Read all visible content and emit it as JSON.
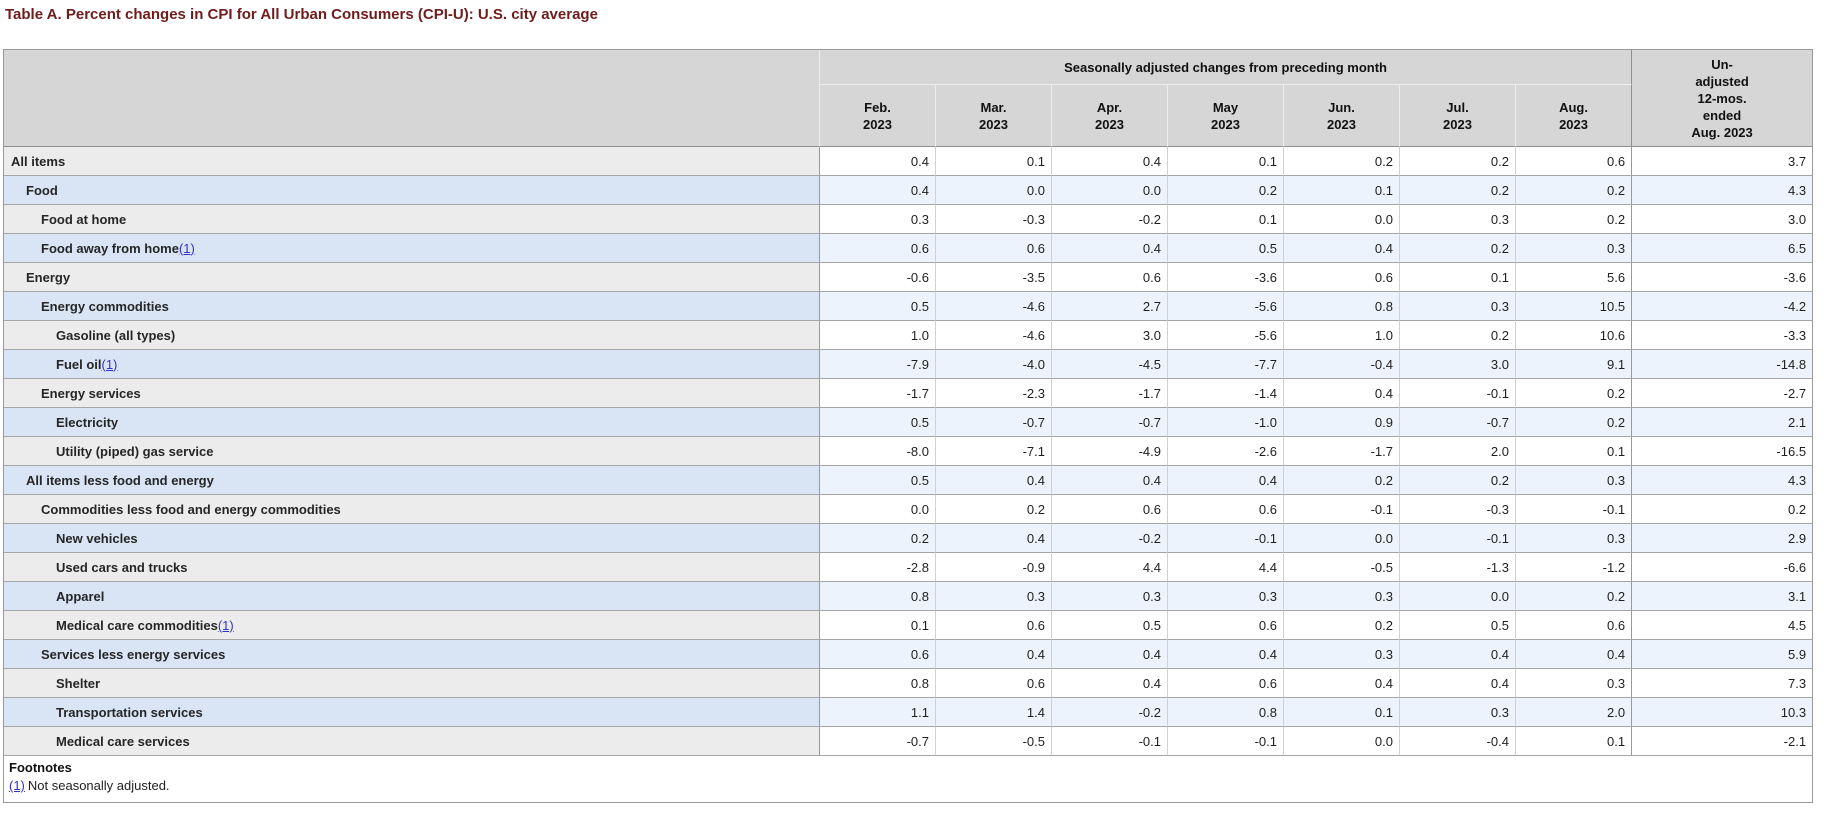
{
  "page_title": "Table A. Percent changes in CPI for All Urban Consumers (CPI-U): U.S. city average",
  "table": {
    "group_header": "Seasonally adjusted changes from preceding month",
    "columns": [
      "Feb.\n2023",
      "Mar.\n2023",
      "Apr.\n2023",
      "May\n2023",
      "Jun.\n2023",
      "Jul.\n2023",
      "Aug.\n2023"
    ],
    "last_column_header": "Un-\nadjusted\n12-mos.\nended\nAug. 2023",
    "rows": [
      {
        "label": "All items",
        "indent": 0,
        "footnote": null,
        "values": [
          "0.4",
          "0.1",
          "0.4",
          "0.1",
          "0.2",
          "0.2",
          "0.6"
        ],
        "yoy": "3.7"
      },
      {
        "label": "Food",
        "indent": 1,
        "footnote": null,
        "values": [
          "0.4",
          "0.0",
          "0.0",
          "0.2",
          "0.1",
          "0.2",
          "0.2"
        ],
        "yoy": "4.3"
      },
      {
        "label": "Food at home",
        "indent": 2,
        "footnote": null,
        "values": [
          "0.3",
          "-0.3",
          "-0.2",
          "0.1",
          "0.0",
          "0.3",
          "0.2"
        ],
        "yoy": "3.0"
      },
      {
        "label": "Food away from home",
        "indent": 2,
        "footnote": "(1)",
        "values": [
          "0.6",
          "0.6",
          "0.4",
          "0.5",
          "0.4",
          "0.2",
          "0.3"
        ],
        "yoy": "6.5"
      },
      {
        "label": "Energy",
        "indent": 1,
        "footnote": null,
        "values": [
          "-0.6",
          "-3.5",
          "0.6",
          "-3.6",
          "0.6",
          "0.1",
          "5.6"
        ],
        "yoy": "-3.6"
      },
      {
        "label": "Energy commodities",
        "indent": 2,
        "footnote": null,
        "values": [
          "0.5",
          "-4.6",
          "2.7",
          "-5.6",
          "0.8",
          "0.3",
          "10.5"
        ],
        "yoy": "-4.2"
      },
      {
        "label": "Gasoline (all types)",
        "indent": 3,
        "footnote": null,
        "values": [
          "1.0",
          "-4.6",
          "3.0",
          "-5.6",
          "1.0",
          "0.2",
          "10.6"
        ],
        "yoy": "-3.3"
      },
      {
        "label": "Fuel oil",
        "indent": 3,
        "footnote": "(1)",
        "values": [
          "-7.9",
          "-4.0",
          "-4.5",
          "-7.7",
          "-0.4",
          "3.0",
          "9.1"
        ],
        "yoy": "-14.8"
      },
      {
        "label": "Energy services",
        "indent": 2,
        "footnote": null,
        "values": [
          "-1.7",
          "-2.3",
          "-1.7",
          "-1.4",
          "0.4",
          "-0.1",
          "0.2"
        ],
        "yoy": "-2.7"
      },
      {
        "label": "Electricity",
        "indent": 3,
        "footnote": null,
        "values": [
          "0.5",
          "-0.7",
          "-0.7",
          "-1.0",
          "0.9",
          "-0.7",
          "0.2"
        ],
        "yoy": "2.1"
      },
      {
        "label": "Utility (piped) gas service",
        "indent": 3,
        "footnote": null,
        "values": [
          "-8.0",
          "-7.1",
          "-4.9",
          "-2.6",
          "-1.7",
          "2.0",
          "0.1"
        ],
        "yoy": "-16.5"
      },
      {
        "label": "All items less food and energy",
        "indent": 1,
        "footnote": null,
        "values": [
          "0.5",
          "0.4",
          "0.4",
          "0.4",
          "0.2",
          "0.2",
          "0.3"
        ],
        "yoy": "4.3"
      },
      {
        "label": "Commodities less food and energy commodities",
        "indent": 2,
        "footnote": null,
        "values": [
          "0.0",
          "0.2",
          "0.6",
          "0.6",
          "-0.1",
          "-0.3",
          "-0.1"
        ],
        "yoy": "0.2"
      },
      {
        "label": "New vehicles",
        "indent": 3,
        "footnote": null,
        "values": [
          "0.2",
          "0.4",
          "-0.2",
          "-0.1",
          "0.0",
          "-0.1",
          "0.3"
        ],
        "yoy": "2.9"
      },
      {
        "label": "Used cars and trucks",
        "indent": 3,
        "footnote": null,
        "values": [
          "-2.8",
          "-0.9",
          "4.4",
          "4.4",
          "-0.5",
          "-1.3",
          "-1.2"
        ],
        "yoy": "-6.6"
      },
      {
        "label": "Apparel",
        "indent": 3,
        "footnote": null,
        "values": [
          "0.8",
          "0.3",
          "0.3",
          "0.3",
          "0.3",
          "0.0",
          "0.2"
        ],
        "yoy": "3.1"
      },
      {
        "label": "Medical care commodities",
        "indent": 3,
        "footnote": "(1)",
        "values": [
          "0.1",
          "0.6",
          "0.5",
          "0.6",
          "0.2",
          "0.5",
          "0.6"
        ],
        "yoy": "4.5"
      },
      {
        "label": "Services less energy services",
        "indent": 2,
        "footnote": null,
        "values": [
          "0.6",
          "0.4",
          "0.4",
          "0.4",
          "0.3",
          "0.4",
          "0.4"
        ],
        "yoy": "5.9"
      },
      {
        "label": "Shelter",
        "indent": 3,
        "footnote": null,
        "values": [
          "0.8",
          "0.6",
          "0.4",
          "0.6",
          "0.4",
          "0.4",
          "0.3"
        ],
        "yoy": "7.3"
      },
      {
        "label": "Transportation services",
        "indent": 3,
        "footnote": null,
        "values": [
          "1.1",
          "1.4",
          "-0.2",
          "0.8",
          "0.1",
          "0.3",
          "2.0"
        ],
        "yoy": "10.3"
      },
      {
        "label": "Medical care services",
        "indent": 3,
        "footnote": null,
        "values": [
          "-0.7",
          "-0.5",
          "-0.1",
          "-0.1",
          "0.0",
          "-0.4",
          "0.1"
        ],
        "yoy": "-2.1"
      }
    ]
  },
  "footnotes": {
    "heading": "Footnotes",
    "items": [
      {
        "marker": "(1)",
        "text": "Not seasonally adjusted."
      }
    ]
  },
  "colors": {
    "title": "#701c1c",
    "header_bg": "#d6d6d6",
    "row_gray_label": "#ececec",
    "row_blue_label": "#d9e4f5",
    "row_blue_cell": "#edf3fc",
    "link": "#3333cc"
  }
}
